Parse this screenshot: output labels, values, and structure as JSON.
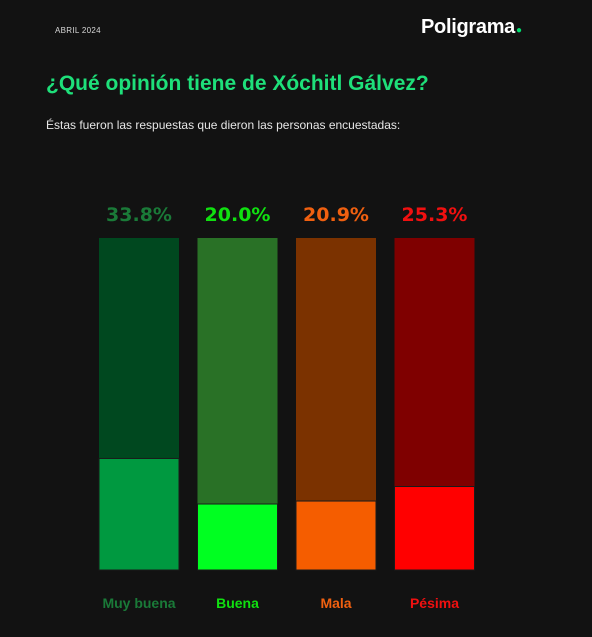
{
  "header": {
    "date": "ABRIL 2024",
    "brand": "Poligrama",
    "brand_dot": "●"
  },
  "title": "¿Qué opinión tiene de Xóchitl Gálvez?",
  "subtitle": "Éstas fueron las respuestas que dieron las personas encuestadas:",
  "chart_data": {
    "type": "bar",
    "title": "¿Qué opinión tiene de Xóchitl Gálvez?",
    "categories": [
      "Muy buena",
      "Buena",
      "Mala",
      "Pésima"
    ],
    "values": [
      33.8,
      20.0,
      20.9,
      25.3
    ],
    "value_labels": [
      "33.8%",
      "20.0%",
      "20.9%",
      "25.3%"
    ],
    "ylim": [
      0,
      100
    ],
    "grid": false,
    "legend": "none",
    "colors": {
      "fill": [
        "#009940",
        "#00ff21",
        "#f55d00",
        "#ff0000"
      ],
      "track": [
        "#00481f",
        "#297126",
        "#7b3200",
        "#7f0000"
      ],
      "label": [
        "#1a7a38",
        "#10e010",
        "#f06010",
        "#f01010"
      ]
    }
  }
}
